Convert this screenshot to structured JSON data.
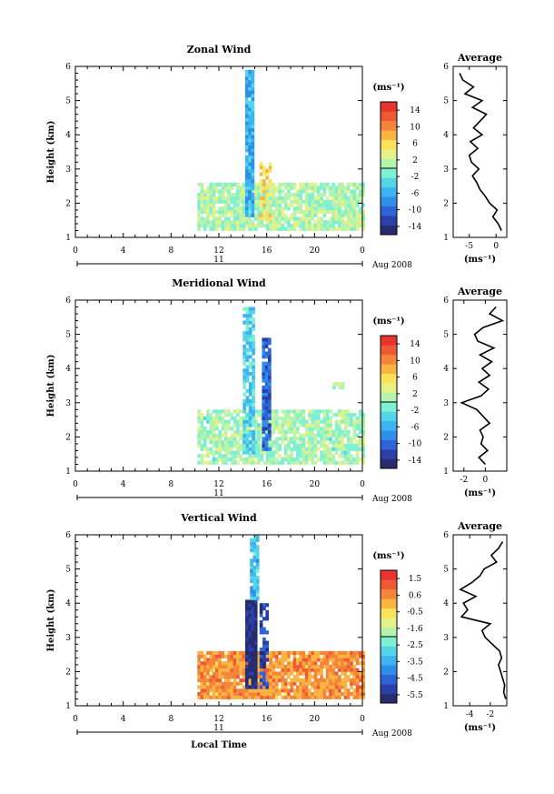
{
  "chart_data": [
    {
      "type": "heatmap",
      "title": "Zonal Wind",
      "ylabel": "Height (km)",
      "xticks": [
        "0",
        "4",
        "8",
        "12",
        "16",
        "20",
        "0"
      ],
      "yticks": [
        "1",
        "2",
        "3",
        "4",
        "5",
        "6"
      ],
      "xlim": [
        0,
        24
      ],
      "ylim": [
        1,
        6
      ],
      "day_label": "11",
      "month_label": "Aug 2008",
      "colorbar": {
        "unit": "(ms⁻¹)",
        "ticks": [
          "14",
          "10",
          "6",
          "2",
          "-2",
          "-6",
          "-10",
          "-14"
        ],
        "range": [
          -16,
          16
        ]
      },
      "regions": [
        {
          "x": [
            10.2,
            24
          ],
          "y": [
            1.2,
            2.6
          ],
          "value": 1.0,
          "density": 0.85
        },
        {
          "x": [
            14.2,
            14.8
          ],
          "y": [
            1.6,
            5.9
          ],
          "value": -6.0,
          "density": 0.95
        },
        {
          "x": [
            15.4,
            16.2
          ],
          "y": [
            1.5,
            3.2
          ],
          "value": 6.0,
          "density": 0.6
        }
      ],
      "average": {
        "title": "Average",
        "xticks": [
          "-5",
          "0"
        ],
        "xlim": [
          -8,
          2
        ],
        "unit": "(ms⁻¹)",
        "heights": [
          1.2,
          1.4,
          1.6,
          1.8,
          2.0,
          2.2,
          2.4,
          2.6,
          2.8,
          3.0,
          3.2,
          3.4,
          3.6,
          3.8,
          4.0,
          4.2,
          4.4,
          4.6,
          4.8,
          5.0,
          5.2,
          5.4,
          5.6,
          5.8
        ],
        "values": [
          1.0,
          0.4,
          -0.6,
          0.2,
          -1.2,
          -2.0,
          -3.0,
          -3.6,
          -4.4,
          -3.2,
          -4.6,
          -5.0,
          -3.4,
          -4.8,
          -2.6,
          -4.2,
          -3.0,
          -1.8,
          -4.4,
          -2.6,
          -5.8,
          -4.2,
          -6.2,
          -6.8
        ]
      }
    },
    {
      "type": "heatmap",
      "title": "Meridional Wind",
      "ylabel": "Height (km)",
      "xticks": [
        "0",
        "4",
        "8",
        "12",
        "16",
        "20",
        "0"
      ],
      "yticks": [
        "1",
        "2",
        "3",
        "4",
        "5",
        "6"
      ],
      "xlim": [
        0,
        24
      ],
      "ylim": [
        1,
        6
      ],
      "day_label": "11",
      "month_label": "Aug 2008",
      "colorbar": {
        "unit": "(ms⁻¹)",
        "ticks": [
          "14",
          "10",
          "6",
          "2",
          "-2",
          "-6",
          "-10",
          "-14"
        ],
        "range": [
          -16,
          16
        ]
      },
      "regions": [
        {
          "x": [
            10.2,
            24
          ],
          "y": [
            1.2,
            2.8
          ],
          "value": 0.5,
          "density": 0.8
        },
        {
          "x": [
            14.0,
            15.0
          ],
          "y": [
            1.5,
            5.8
          ],
          "value": -4.0,
          "density": 0.8
        },
        {
          "x": [
            15.6,
            16.3
          ],
          "y": [
            1.6,
            4.9
          ],
          "value": -10.0,
          "density": 0.85
        },
        {
          "x": [
            21.5,
            22.5
          ],
          "y": [
            3.4,
            3.6
          ],
          "value": 1.0,
          "density": 0.7
        }
      ],
      "average": {
        "title": "Average",
        "xticks": [
          "-2",
          "0"
        ],
        "xlim": [
          -3,
          2
        ],
        "unit": "(ms⁻¹)",
        "heights": [
          1.2,
          1.4,
          1.6,
          1.8,
          2.0,
          2.2,
          2.4,
          2.6,
          2.8,
          3.0,
          3.2,
          3.4,
          3.6,
          3.8,
          4.0,
          4.2,
          4.4,
          4.6,
          4.8,
          5.0,
          5.2,
          5.4,
          5.6,
          5.8
        ],
        "values": [
          0.0,
          -0.6,
          0.2,
          -0.4,
          -0.2,
          -0.5,
          0.4,
          -0.2,
          -0.8,
          -2.2,
          -0.4,
          0.3,
          -0.6,
          0.4,
          -0.3,
          0.6,
          -0.5,
          0.8,
          -0.7,
          -1.0,
          -0.2,
          1.6,
          0.4,
          1.0
        ]
      }
    },
    {
      "type": "heatmap",
      "title": "Vertical Wind",
      "ylabel": "Height (km)",
      "xlabel": "Local Time",
      "xticks": [
        "0",
        "4",
        "8",
        "12",
        "16",
        "20",
        "0"
      ],
      "yticks": [
        "1",
        "2",
        "3",
        "4",
        "5",
        "6"
      ],
      "xlim": [
        0,
        24
      ],
      "ylim": [
        1,
        6
      ],
      "day_label": "11",
      "month_label": "Aug 2008",
      "colorbar": {
        "unit": "(ms⁻¹)",
        "ticks": [
          "1.5",
          "0.6",
          "-0.5",
          "-1.6",
          "-2.5",
          "-3.5",
          "-4.5",
          "-5.5"
        ],
        "range": [
          -6,
          2
        ]
      },
      "regions": [
        {
          "x": [
            10.2,
            24
          ],
          "y": [
            1.2,
            2.6
          ],
          "value": 0.4,
          "density": 0.9
        },
        {
          "x": [
            14.2,
            15.0
          ],
          "y": [
            1.5,
            4.1
          ],
          "value": -5.6,
          "density": 0.95
        },
        {
          "x": [
            14.6,
            15.2
          ],
          "y": [
            4.1,
            6.0
          ],
          "value": -3.2,
          "density": 0.9
        },
        {
          "x": [
            15.4,
            16.0
          ],
          "y": [
            1.5,
            4.0
          ],
          "value": -5.0,
          "density": 0.6
        }
      ],
      "average": {
        "title": "Average",
        "xticks": [
          "-4",
          "-2"
        ],
        "xlim": [
          -5.6,
          -0.4
        ],
        "unit": "(ms⁻¹)",
        "heights": [
          1.2,
          1.4,
          1.6,
          1.8,
          2.0,
          2.2,
          2.4,
          2.6,
          2.8,
          3.0,
          3.2,
          3.4,
          3.6,
          3.8,
          4.0,
          4.2,
          4.4,
          4.6,
          4.8,
          5.0,
          5.2,
          5.4,
          5.6,
          5.8
        ],
        "values": [
          -0.5,
          -0.7,
          -0.6,
          -0.8,
          -1.0,
          -1.2,
          -0.9,
          -1.1,
          -1.8,
          -2.5,
          -2.8,
          -2.0,
          -4.8,
          -4.2,
          -4.6,
          -3.4,
          -4.9,
          -3.8,
          -3.0,
          -2.6,
          -1.4,
          -1.9,
          -1.2,
          -0.8
        ]
      }
    }
  ]
}
